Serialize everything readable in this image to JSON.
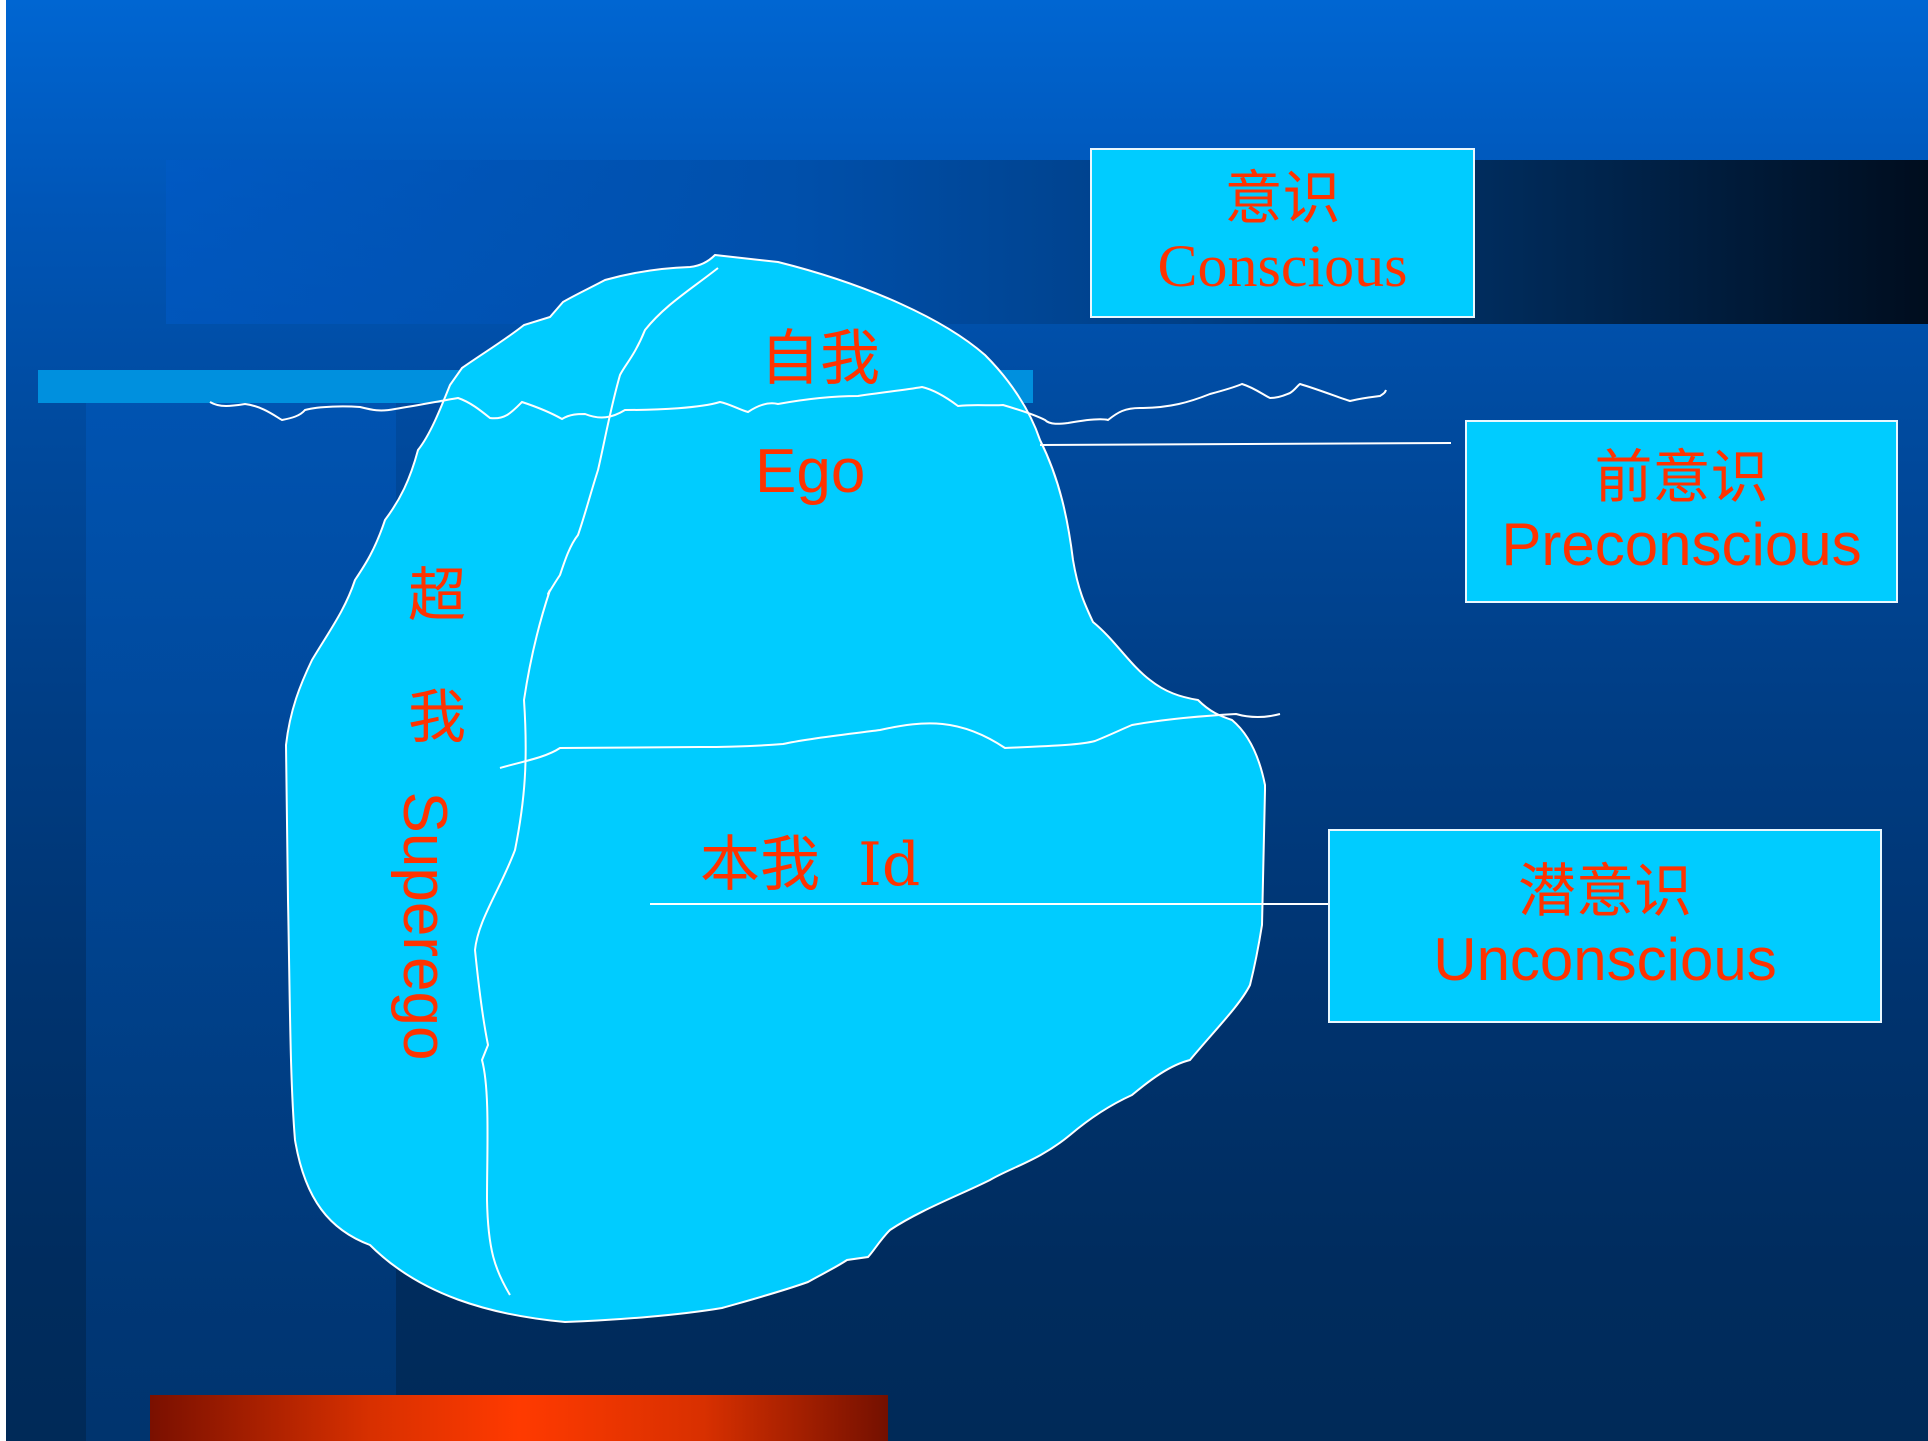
{
  "levels": {
    "conscious": {
      "zh": "意识",
      "en": "Conscious"
    },
    "preconscious": {
      "zh": "前意识",
      "en": "Preconscious"
    },
    "unconscious": {
      "zh": "潜意识",
      "en": "Unconscious"
    }
  },
  "iceberg": {
    "ego": {
      "zh": "自我",
      "en": "Ego"
    },
    "id": {
      "label": "本我  Id"
    },
    "superego": {
      "zh_1": "超",
      "zh_2": "我",
      "en": "Superego"
    }
  },
  "colors": {
    "background_top": "#0066d2",
    "background_bottom": "#002a58",
    "iceberg_fill": "#00ccff",
    "label_text": "#ff3300",
    "outline": "#ffffff"
  }
}
